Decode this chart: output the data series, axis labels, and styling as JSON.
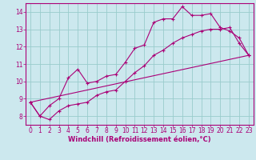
{
  "bg_color": "#cce8ee",
  "line_color": "#aa0077",
  "grid_color": "#99cccc",
  "xlabel": "Windchill (Refroidissement éolien,°C)",
  "xlabel_color": "#aa0077",
  "tick_color": "#aa0077",
  "spine_color": "#aa0077",
  "ylim": [
    7.5,
    14.5
  ],
  "xlim": [
    -0.5,
    23.5
  ],
  "yticks": [
    8,
    9,
    10,
    11,
    12,
    13,
    14
  ],
  "xticks": [
    0,
    1,
    2,
    3,
    4,
    5,
    6,
    7,
    8,
    9,
    10,
    11,
    12,
    13,
    14,
    15,
    16,
    17,
    18,
    19,
    20,
    21,
    22,
    23
  ],
  "line1_x": [
    0,
    1,
    2,
    3,
    4,
    5,
    6,
    7,
    8,
    9,
    10,
    11,
    12,
    13,
    14,
    15,
    16,
    17,
    18,
    19,
    20,
    21,
    22,
    23
  ],
  "line1_y": [
    8.8,
    8.0,
    8.6,
    9.0,
    10.2,
    10.7,
    9.9,
    10.0,
    10.3,
    10.4,
    11.1,
    11.9,
    12.1,
    13.4,
    13.6,
    13.6,
    14.3,
    13.8,
    13.8,
    13.9,
    13.1,
    12.9,
    12.5,
    11.5
  ],
  "line2_x": [
    0,
    1,
    2,
    3,
    4,
    5,
    6,
    7,
    8,
    9,
    10,
    11,
    12,
    13,
    14,
    15,
    16,
    17,
    18,
    19,
    20,
    21,
    22,
    23
  ],
  "line2_y": [
    8.8,
    8.0,
    7.8,
    8.3,
    8.6,
    8.7,
    8.8,
    9.2,
    9.4,
    9.5,
    10.0,
    10.5,
    10.9,
    11.5,
    11.8,
    12.2,
    12.5,
    12.7,
    12.9,
    13.0,
    13.0,
    13.1,
    12.2,
    11.5
  ],
  "line3_x": [
    0,
    23
  ],
  "line3_y": [
    8.8,
    11.5
  ],
  "tick_fontsize": 5.5,
  "xlabel_fontsize": 6.0
}
